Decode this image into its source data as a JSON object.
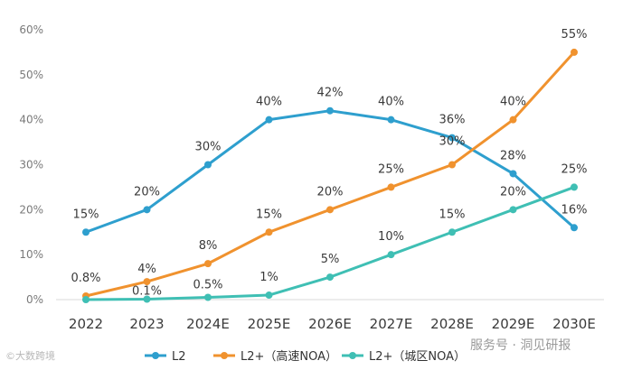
{
  "chart_data": {
    "type": "line",
    "title": "",
    "xlabel": "",
    "ylabel": "",
    "categories": [
      "2022",
      "2023",
      "2024E",
      "2025E",
      "2026E",
      "2027E",
      "2028E",
      "2029E",
      "2030E"
    ],
    "ylim": [
      0,
      60
    ],
    "yticks": [
      "0%",
      "10%",
      "20%",
      "30%",
      "40%",
      "50%",
      "60%"
    ],
    "grid": false,
    "legend_position": "bottom",
    "series": [
      {
        "name": "L2",
        "color": "#2e9fce",
        "values": [
          15,
          20,
          30,
          40,
          42,
          40,
          36,
          28,
          16
        ],
        "labels": [
          "15%",
          "20%",
          "30%",
          "40%",
          "42%",
          "40%",
          "36%",
          "28%",
          "16%"
        ]
      },
      {
        "name": "L2+（高速NOA）",
        "color": "#f0922e",
        "values": [
          0.8,
          4,
          8,
          15,
          20,
          25,
          30,
          40,
          55
        ],
        "labels": [
          "0.8%",
          "4%",
          "8%",
          "15%",
          "20%",
          "25%",
          "30%",
          "40%",
          "55%"
        ]
      },
      {
        "name": "L2+（城区NOA）",
        "color": "#3fbfb4",
        "values": [
          0,
          0.1,
          0.5,
          1,
          5,
          10,
          15,
          20,
          25
        ],
        "labels": [
          "",
          "0.1%",
          "0.5%",
          "1%",
          "5%",
          "10%",
          "15%",
          "20%",
          "25%"
        ]
      }
    ]
  },
  "watermarks": {
    "left": "©大数跨境",
    "right": "服务号 · 洞见研报"
  }
}
